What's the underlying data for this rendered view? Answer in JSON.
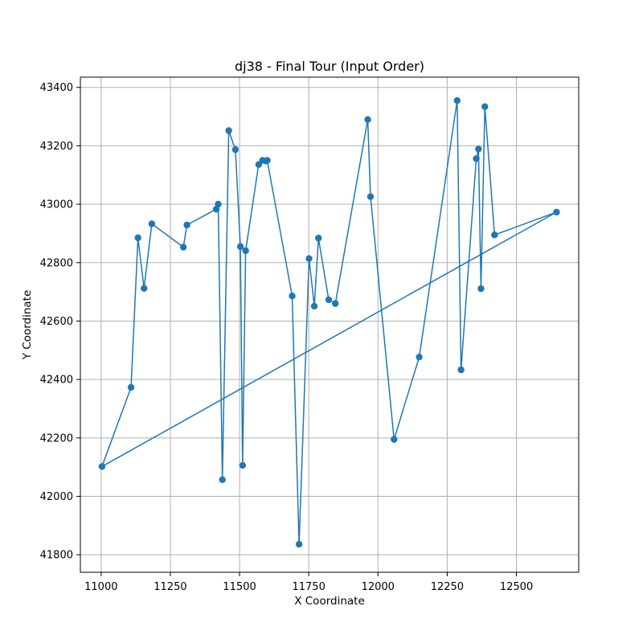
{
  "chart_data": {
    "type": "line",
    "title": "dj38 - Final Tour (Input Order)",
    "xlabel": "X Coordinate",
    "ylabel": "Y Coordinate",
    "xlim": [
      10925,
      12725
    ],
    "ylim": [
      41740,
      43435
    ],
    "xticks": [
      11000,
      11250,
      11500,
      11750,
      12000,
      12250,
      12500
    ],
    "yticks": [
      41800,
      42000,
      42200,
      42400,
      42600,
      42800,
      43000,
      43200,
      43400
    ],
    "grid": true,
    "series": [
      {
        "color": "#1f77b4",
        "marker": "circle",
        "closed": true,
        "points": [
          [
            11003,
            42102
          ],
          [
            11108,
            42373
          ],
          [
            11133,
            42885
          ],
          [
            11155,
            42712
          ],
          [
            11183,
            42933
          ],
          [
            11297,
            42853
          ],
          [
            11310,
            42929
          ],
          [
            11416,
            42983
          ],
          [
            11423,
            43000
          ],
          [
            11438,
            42057
          ],
          [
            11461,
            43252
          ],
          [
            11485,
            43187
          ],
          [
            11503,
            42855
          ],
          [
            11511,
            42106
          ],
          [
            11522,
            42841
          ],
          [
            11569,
            43136
          ],
          [
            11583,
            43150
          ],
          [
            11595,
            43148
          ],
          [
            11600,
            43150
          ],
          [
            11690,
            42686
          ],
          [
            11715,
            41836
          ],
          [
            11751,
            42814
          ],
          [
            11770,
            42651
          ],
          [
            11785,
            42884
          ],
          [
            11822,
            42673
          ],
          [
            11846,
            42660
          ],
          [
            11963,
            43290
          ],
          [
            11973,
            43026
          ],
          [
            12058,
            42195
          ],
          [
            12149,
            42477
          ],
          [
            12286,
            43355
          ],
          [
            12300,
            42433
          ],
          [
            12355,
            43156
          ],
          [
            12363,
            43189
          ],
          [
            12372,
            42711
          ],
          [
            12386,
            43334
          ],
          [
            12421,
            42895
          ],
          [
            12645,
            42973
          ]
        ]
      }
    ]
  }
}
